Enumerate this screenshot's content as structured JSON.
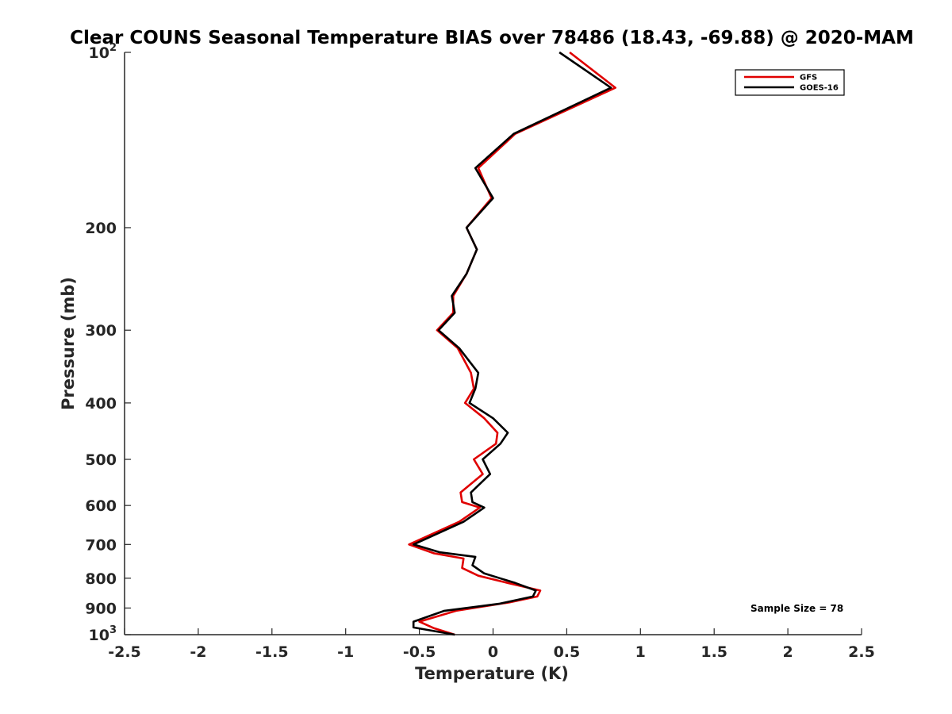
{
  "chart_data": {
    "type": "line",
    "title": "Clear COUNS Seasonal Temperature BIAS over 78486 (18.43, -69.88) @ 2020-MAM",
    "xlabel": "Temperature (K)",
    "ylabel": "Pressure (mb)",
    "xlim": [
      -2.5,
      2.5
    ],
    "ylim": [
      100,
      1000
    ],
    "y_scale": "log",
    "y_reversed": true,
    "grid": false,
    "legend_position": "top-right",
    "annotation": "Sample Size = 78",
    "x_ticks": [
      {
        "value": -2.5,
        "label": "-2.5"
      },
      {
        "value": -2,
        "label": "-2"
      },
      {
        "value": -1.5,
        "label": "-1.5"
      },
      {
        "value": -1,
        "label": "-1"
      },
      {
        "value": -0.5,
        "label": "-0.5"
      },
      {
        "value": 0,
        "label": "0"
      },
      {
        "value": 0.5,
        "label": "0.5"
      },
      {
        "value": 1,
        "label": "1"
      },
      {
        "value": 1.5,
        "label": "1.5"
      },
      {
        "value": 2,
        "label": "2"
      },
      {
        "value": 2.5,
        "label": "2.5"
      }
    ],
    "y_ticks": [
      {
        "value": 100,
        "base": "10",
        "exp": "2"
      },
      {
        "value": 200,
        "label": "200"
      },
      {
        "value": 300,
        "label": "300"
      },
      {
        "value": 400,
        "label": "400"
      },
      {
        "value": 500,
        "label": "500"
      },
      {
        "value": 600,
        "label": "600"
      },
      {
        "value": 700,
        "label": "700"
      },
      {
        "value": 800,
        "label": "800"
      },
      {
        "value": 900,
        "label": "900"
      },
      {
        "value": 1000,
        "base": "10",
        "exp": "3"
      }
    ],
    "series": [
      {
        "name": "GFS",
        "color": "#e00000",
        "points": [
          {
            "x": 0.52,
            "p": 100
          },
          {
            "x": 0.83,
            "p": 115
          },
          {
            "x": 0.15,
            "p": 138
          },
          {
            "x": -0.1,
            "p": 158
          },
          {
            "x": -0.01,
            "p": 178
          },
          {
            "x": -0.18,
            "p": 200
          },
          {
            "x": -0.11,
            "p": 218
          },
          {
            "x": -0.18,
            "p": 240
          },
          {
            "x": -0.27,
            "p": 262
          },
          {
            "x": -0.27,
            "p": 280
          },
          {
            "x": -0.38,
            "p": 300
          },
          {
            "x": -0.24,
            "p": 322
          },
          {
            "x": -0.15,
            "p": 355
          },
          {
            "x": -0.13,
            "p": 378
          },
          {
            "x": -0.19,
            "p": 400
          },
          {
            "x": -0.06,
            "p": 425
          },
          {
            "x": 0.03,
            "p": 450
          },
          {
            "x": 0.02,
            "p": 470
          },
          {
            "x": -0.13,
            "p": 500
          },
          {
            "x": -0.07,
            "p": 530
          },
          {
            "x": -0.22,
            "p": 570
          },
          {
            "x": -0.21,
            "p": 592
          },
          {
            "x": -0.09,
            "p": 605
          },
          {
            "x": -0.23,
            "p": 640
          },
          {
            "x": -0.57,
            "p": 700
          },
          {
            "x": -0.4,
            "p": 725
          },
          {
            "x": -0.2,
            "p": 740
          },
          {
            "x": -0.21,
            "p": 768
          },
          {
            "x": -0.1,
            "p": 792
          },
          {
            "x": 0.1,
            "p": 815
          },
          {
            "x": 0.32,
            "p": 840
          },
          {
            "x": 0.3,
            "p": 860
          },
          {
            "x": 0.11,
            "p": 880
          },
          {
            "x": -0.25,
            "p": 910
          },
          {
            "x": -0.5,
            "p": 950
          },
          {
            "x": -0.4,
            "p": 975
          },
          {
            "x": -0.26,
            "p": 1000
          }
        ]
      },
      {
        "name": "GOES-16",
        "color": "#000000",
        "points": [
          {
            "x": 0.45,
            "p": 100
          },
          {
            "x": 0.8,
            "p": 115
          },
          {
            "x": 0.14,
            "p": 138
          },
          {
            "x": -0.12,
            "p": 158
          },
          {
            "x": 0.0,
            "p": 178
          },
          {
            "x": -0.18,
            "p": 200
          },
          {
            "x": -0.11,
            "p": 218
          },
          {
            "x": -0.18,
            "p": 240
          },
          {
            "x": -0.28,
            "p": 262
          },
          {
            "x": -0.26,
            "p": 280
          },
          {
            "x": -0.37,
            "p": 300
          },
          {
            "x": -0.23,
            "p": 322
          },
          {
            "x": -0.1,
            "p": 355
          },
          {
            "x": -0.12,
            "p": 378
          },
          {
            "x": -0.16,
            "p": 400
          },
          {
            "x": 0.0,
            "p": 425
          },
          {
            "x": 0.1,
            "p": 450
          },
          {
            "x": 0.05,
            "p": 470
          },
          {
            "x": -0.07,
            "p": 500
          },
          {
            "x": -0.02,
            "p": 530
          },
          {
            "x": -0.15,
            "p": 570
          },
          {
            "x": -0.14,
            "p": 592
          },
          {
            "x": -0.06,
            "p": 605
          },
          {
            "x": -0.2,
            "p": 640
          },
          {
            "x": -0.54,
            "p": 700
          },
          {
            "x": -0.36,
            "p": 722
          },
          {
            "x": -0.12,
            "p": 735
          },
          {
            "x": -0.14,
            "p": 760
          },
          {
            "x": -0.06,
            "p": 785
          },
          {
            "x": 0.15,
            "p": 815
          },
          {
            "x": 0.29,
            "p": 840
          },
          {
            "x": 0.27,
            "p": 860
          },
          {
            "x": 0.04,
            "p": 885
          },
          {
            "x": -0.33,
            "p": 910
          },
          {
            "x": -0.54,
            "p": 950
          },
          {
            "x": -0.54,
            "p": 972
          },
          {
            "x": -0.26,
            "p": 1000
          }
        ]
      }
    ]
  }
}
